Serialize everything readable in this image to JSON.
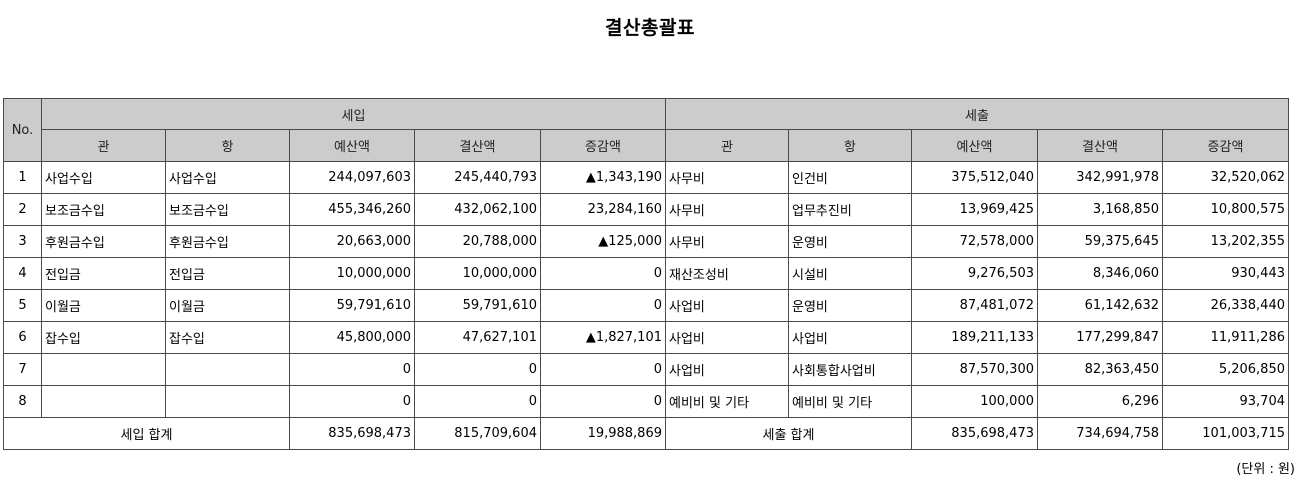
{
  "title": "결산총괄표",
  "headers": {
    "no": "No.",
    "income_group": "세입",
    "expense_group": "세출",
    "gwan": "관",
    "hang": "항",
    "budget": "예산액",
    "settlement": "결산액",
    "diff": "증감액"
  },
  "rows": [
    {
      "no": "1",
      "in_gwan": "사업수입",
      "in_hang": "사업수입",
      "in_budget": "244,097,603",
      "in_settle": "245,440,793",
      "in_diff": "▲1,343,190",
      "ex_gwan": "사무비",
      "ex_hang": "인건비",
      "ex_budget": "375,512,040",
      "ex_settle": "342,991,978",
      "ex_diff": "32,520,062"
    },
    {
      "no": "2",
      "in_gwan": "보조금수입",
      "in_hang": "보조금수입",
      "in_budget": "455,346,260",
      "in_settle": "432,062,100",
      "in_diff": "23,284,160",
      "ex_gwan": "사무비",
      "ex_hang": "업무추진비",
      "ex_budget": "13,969,425",
      "ex_settle": "3,168,850",
      "ex_diff": "10,800,575"
    },
    {
      "no": "3",
      "in_gwan": "후원금수입",
      "in_hang": "후원금수입",
      "in_budget": "20,663,000",
      "in_settle": "20,788,000",
      "in_diff": "▲125,000",
      "ex_gwan": "사무비",
      "ex_hang": "운영비",
      "ex_budget": "72,578,000",
      "ex_settle": "59,375,645",
      "ex_diff": "13,202,355"
    },
    {
      "no": "4",
      "in_gwan": "전입금",
      "in_hang": "전입금",
      "in_budget": "10,000,000",
      "in_settle": "10,000,000",
      "in_diff": "0",
      "ex_gwan": "재산조성비",
      "ex_hang": "시설비",
      "ex_budget": "9,276,503",
      "ex_settle": "8,346,060",
      "ex_diff": "930,443"
    },
    {
      "no": "5",
      "in_gwan": "이월금",
      "in_hang": "이월금",
      "in_budget": "59,791,610",
      "in_settle": "59,791,610",
      "in_diff": "0",
      "ex_gwan": "사업비",
      "ex_hang": "운영비",
      "ex_budget": "87,481,072",
      "ex_settle": "61,142,632",
      "ex_diff": "26,338,440"
    },
    {
      "no": "6",
      "in_gwan": "잡수입",
      "in_hang": "잡수입",
      "in_budget": "45,800,000",
      "in_settle": "47,627,101",
      "in_diff": "▲1,827,101",
      "ex_gwan": "사업비",
      "ex_hang": "사업비",
      "ex_budget": "189,211,133",
      "ex_settle": "177,299,847",
      "ex_diff": "11,911,286"
    },
    {
      "no": "7",
      "in_gwan": "",
      "in_hang": "",
      "in_budget": "0",
      "in_settle": "0",
      "in_diff": "0",
      "ex_gwan": "사업비",
      "ex_hang": "사회통합사업비",
      "ex_budget": "87,570,300",
      "ex_settle": "82,363,450",
      "ex_diff": "5,206,850"
    },
    {
      "no": "8",
      "in_gwan": "",
      "in_hang": "",
      "in_budget": "0",
      "in_settle": "0",
      "in_diff": "0",
      "ex_gwan": "예비비 및 기타",
      "ex_hang": "예비비 및 기타",
      "ex_budget": "100,000",
      "ex_settle": "6,296",
      "ex_diff": "93,704"
    }
  ],
  "totals": {
    "in_label": "세입 합계",
    "in_budget": "835,698,473",
    "in_settle": "815,709,604",
    "in_diff": "19,988,869",
    "ex_label": "세출 합계",
    "ex_budget": "835,698,473",
    "ex_settle": "734,694,758",
    "ex_diff": "101,003,715"
  },
  "unit_note": "(단위 : 원)"
}
